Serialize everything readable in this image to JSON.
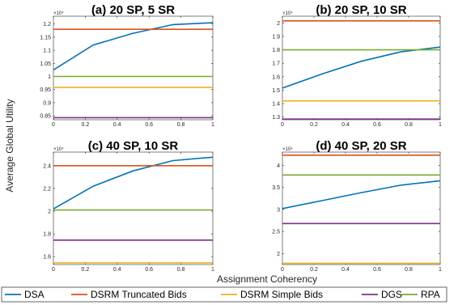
{
  "figure": {
    "ylabel": "Average Global Utility",
    "xlabel": "Assignment Coherency"
  },
  "legend": [
    {
      "name": "DSA",
      "color": "#0072BD"
    },
    {
      "name": "DSRM Truncated Bids",
      "color": "#D95319"
    },
    {
      "name": "DSRM Simple Bids",
      "color": "#EDB120"
    },
    {
      "name": "DGS",
      "color": "#7E2F8E"
    },
    {
      "name": "RPA",
      "color": "#77AC30"
    }
  ],
  "chart_data": [
    {
      "type": "line",
      "title": "(a) 20 SP, 5 SR",
      "multiplier": "×10⁴",
      "x": [
        0,
        0.25,
        0.5,
        0.75,
        1
      ],
      "xticks": [
        "0",
        "0.2",
        "0.4",
        "0.6",
        "0.8",
        "1"
      ],
      "ylim": [
        0.835,
        1.23
      ],
      "yticks": [
        "0.85",
        "0.9",
        "0.95",
        "1",
        "1.05",
        "1.1",
        "1.15",
        "1.2"
      ],
      "series": [
        {
          "name": "DSA",
          "values": [
            1.025,
            1.12,
            1.165,
            1.198,
            1.205
          ]
        },
        {
          "name": "DSRM Truncated Bids",
          "values": [
            1.18,
            1.18,
            1.18,
            1.18,
            1.18
          ]
        },
        {
          "name": "DSRM Simple Bids",
          "values": [
            0.958,
            0.958,
            0.958,
            0.958,
            0.958
          ]
        },
        {
          "name": "DGS",
          "values": [
            0.843,
            0.843,
            0.843,
            0.843,
            0.843
          ]
        },
        {
          "name": "RPA",
          "values": [
            1.0,
            1.0,
            1.0,
            1.0,
            1.0
          ]
        }
      ]
    },
    {
      "type": "line",
      "title": "(b) 20 SP, 10 SR",
      "multiplier": "×10⁴",
      "x": [
        0,
        0.25,
        0.5,
        0.75,
        1
      ],
      "xticks": [
        "0",
        "0.2",
        "0.4",
        "0.6",
        "0.8",
        "1"
      ],
      "ylim": [
        1.28,
        2.05
      ],
      "yticks": [
        "1.3",
        "1.4",
        "1.5",
        "1.6",
        "1.7",
        "1.8",
        "1.9",
        "2"
      ],
      "series": [
        {
          "name": "DSA",
          "values": [
            1.515,
            1.62,
            1.715,
            1.785,
            1.82
          ]
        },
        {
          "name": "DSRM Truncated Bids",
          "values": [
            2.015,
            2.015,
            2.015,
            2.015,
            2.015
          ]
        },
        {
          "name": "DSRM Simple Bids",
          "values": [
            1.42,
            1.42,
            1.42,
            1.42,
            1.42
          ]
        },
        {
          "name": "DGS",
          "values": [
            1.285,
            1.285,
            1.285,
            1.285,
            1.285
          ]
        },
        {
          "name": "RPA",
          "values": [
            1.8,
            1.8,
            1.8,
            1.8,
            1.8
          ]
        }
      ]
    },
    {
      "type": "line",
      "title": "(c) 40 SP, 10 SR",
      "multiplier": "×10⁴",
      "x": [
        0,
        0.25,
        0.5,
        0.75,
        1
      ],
      "xticks": [
        "0",
        "0.2",
        "0.4",
        "0.6",
        "0.8",
        "1"
      ],
      "ylim": [
        1.53,
        2.52
      ],
      "yticks": [
        "1.6",
        "1.8",
        "2",
        "2.2",
        "2.4"
      ],
      "series": [
        {
          "name": "DSA",
          "values": [
            2.02,
            2.22,
            2.355,
            2.445,
            2.475
          ]
        },
        {
          "name": "DSRM Truncated Bids",
          "values": [
            2.4,
            2.4,
            2.4,
            2.4,
            2.4
          ]
        },
        {
          "name": "DSRM Simple Bids",
          "values": [
            1.545,
            1.545,
            1.545,
            1.545,
            1.545
          ]
        },
        {
          "name": "DGS",
          "values": [
            1.745,
            1.745,
            1.745,
            1.745,
            1.745
          ]
        },
        {
          "name": "RPA",
          "values": [
            2.01,
            2.01,
            2.01,
            2.01,
            2.01
          ]
        }
      ]
    },
    {
      "type": "line",
      "title": "(d) 40 SP, 20 SR",
      "multiplier": "×10⁴",
      "x": [
        0,
        0.25,
        0.5,
        0.75,
        1
      ],
      "xticks": [
        "0",
        "0.2",
        "0.4",
        "0.6",
        "0.8",
        "1"
      ],
      "ylim": [
        1.75,
        4.3
      ],
      "yticks": [
        "2",
        "2.5",
        "3",
        "3.5",
        "4"
      ],
      "series": [
        {
          "name": "DSA",
          "values": [
            3.02,
            3.2,
            3.38,
            3.55,
            3.65
          ]
        },
        {
          "name": "DSRM Truncated Bids",
          "values": [
            4.23,
            4.23,
            4.23,
            4.23,
            4.23
          ]
        },
        {
          "name": "DSRM Simple Bids",
          "values": [
            1.78,
            1.78,
            1.78,
            1.78,
            1.78
          ]
        },
        {
          "name": "DGS",
          "values": [
            2.68,
            2.68,
            2.68,
            2.68,
            2.68
          ]
        },
        {
          "name": "RPA",
          "values": [
            3.78,
            3.78,
            3.78,
            3.78,
            3.78
          ]
        }
      ]
    }
  ]
}
